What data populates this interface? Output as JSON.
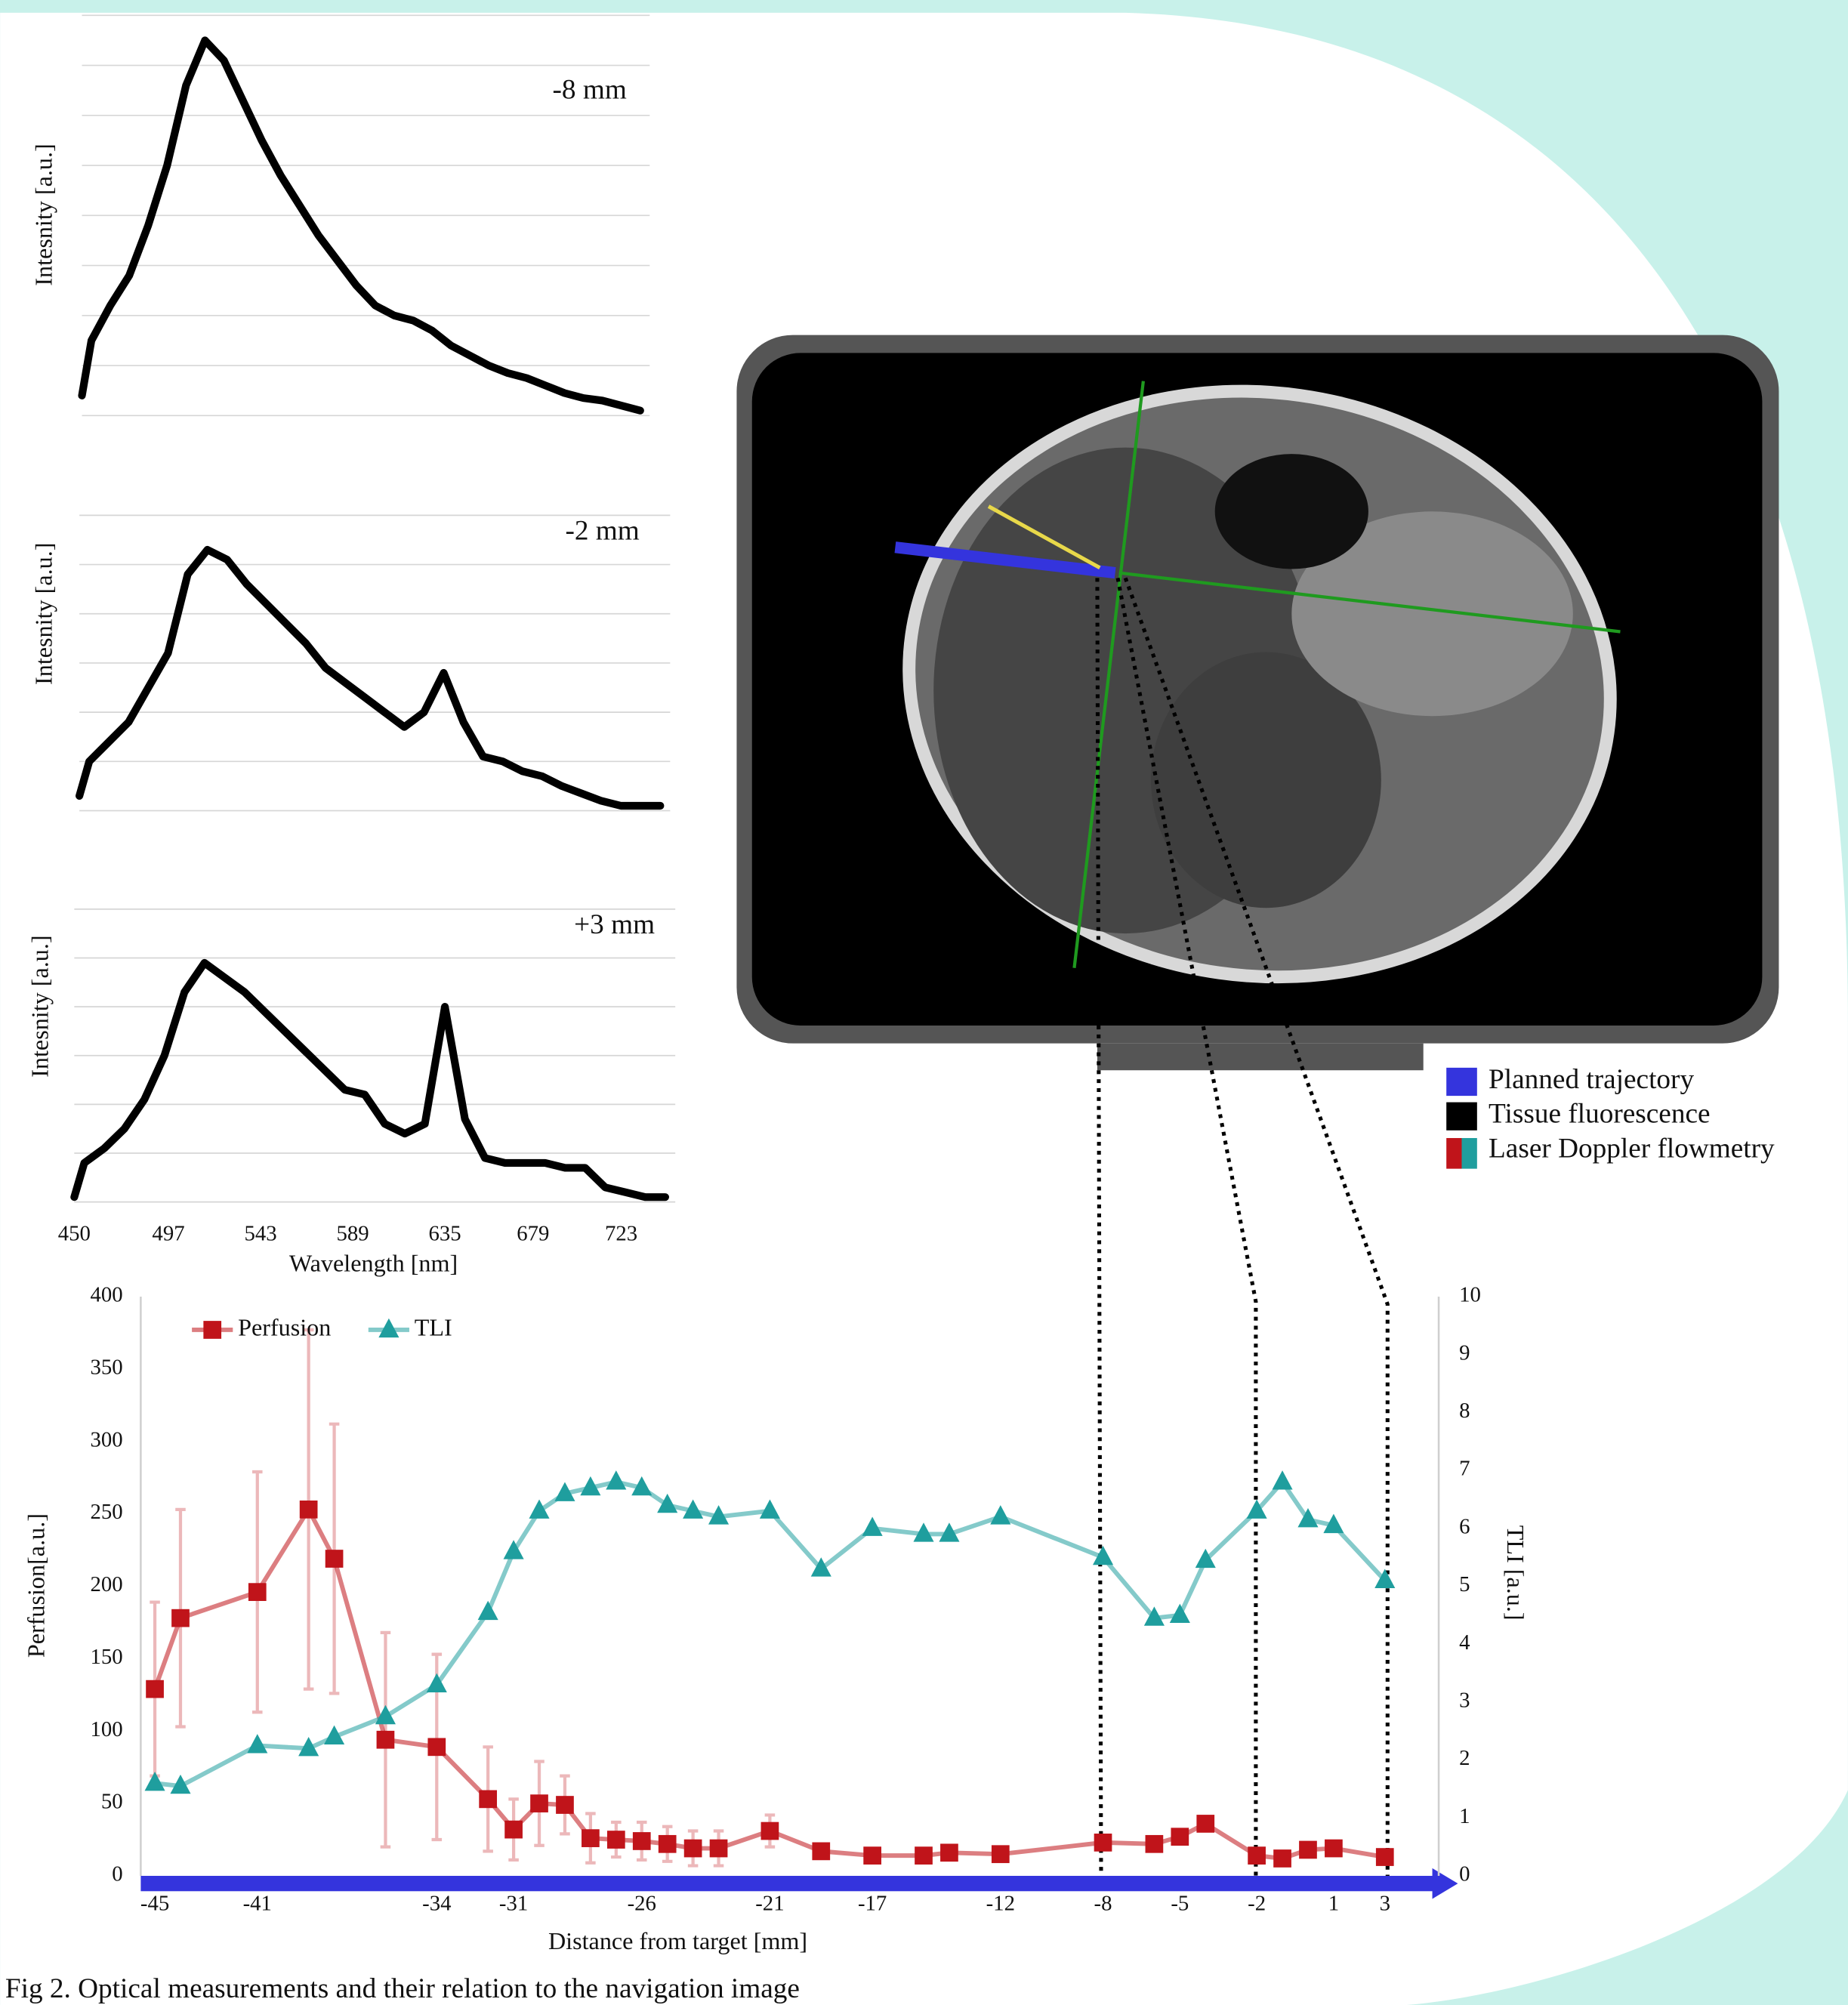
{
  "chart_data": [
    {
      "type": "line",
      "annotation": "-8 mm",
      "ylabel": "Intesnity [a.u.]",
      "color": "#000000",
      "grid": true,
      "ytick_labels": false,
      "xlim": [
        450,
        750
      ],
      "ylim": [
        0,
        8
      ],
      "yticks": [
        0,
        1,
        2,
        3,
        4,
        5,
        6,
        7,
        8
      ],
      "x": [
        450,
        455,
        465,
        475,
        485,
        495,
        505,
        515,
        525,
        535,
        545,
        555,
        565,
        575,
        585,
        595,
        605,
        615,
        625,
        635,
        645,
        655,
        665,
        675,
        685,
        695,
        705,
        715,
        725,
        735,
        745
      ],
      "values": [
        0.4,
        1.5,
        2.2,
        2.8,
        3.8,
        5.0,
        6.6,
        7.5,
        7.1,
        6.3,
        5.5,
        4.8,
        4.2,
        3.6,
        3.1,
        2.6,
        2.2,
        2.0,
        1.9,
        1.7,
        1.4,
        1.2,
        1.0,
        0.85,
        0.75,
        0.6,
        0.45,
        0.35,
        0.3,
        0.2,
        0.1
      ]
    },
    {
      "type": "line",
      "annotation": "-2 mm",
      "ylabel": "Intesnity [a.u.]",
      "color": "#000000",
      "grid": true,
      "ytick_labels": false,
      "xlim": [
        450,
        750
      ],
      "ylim": [
        0,
        6
      ],
      "yticks": [
        0,
        1,
        2,
        3,
        4,
        5,
        6
      ],
      "x": [
        450,
        455,
        465,
        475,
        485,
        495,
        505,
        515,
        525,
        535,
        545,
        555,
        565,
        575,
        585,
        595,
        605,
        615,
        625,
        635,
        645,
        655,
        665,
        675,
        685,
        695,
        705,
        715,
        725,
        735,
        745
      ],
      "values": [
        0.3,
        1.0,
        1.4,
        1.8,
        2.5,
        3.2,
        4.8,
        5.3,
        5.1,
        4.6,
        4.2,
        3.8,
        3.4,
        2.9,
        2.6,
        2.3,
        2.0,
        1.7,
        2.0,
        2.8,
        1.8,
        1.1,
        1.0,
        0.8,
        0.7,
        0.5,
        0.35,
        0.2,
        0.1,
        0.1,
        0.1
      ]
    },
    {
      "type": "line",
      "annotation": "+3 mm",
      "ylabel": "Intesnity [a.u.]",
      "xlabel": "Wavelength [nm]",
      "color": "#000000",
      "grid": true,
      "ytick_labels": false,
      "xlim": [
        450,
        750
      ],
      "ylim": [
        0,
        6
      ],
      "yticks": [
        0,
        1,
        2,
        3,
        4,
        5,
        6
      ],
      "xticks": [
        450,
        497,
        543,
        589,
        635,
        679,
        723
      ],
      "x": [
        450,
        455,
        465,
        475,
        485,
        495,
        505,
        515,
        525,
        535,
        545,
        555,
        565,
        575,
        585,
        595,
        605,
        615,
        625,
        635,
        645,
        655,
        665,
        675,
        685,
        695,
        705,
        715,
        725,
        735,
        745
      ],
      "values": [
        0.1,
        0.8,
        1.1,
        1.5,
        2.1,
        3.0,
        4.3,
        4.9,
        4.6,
        4.3,
        3.9,
        3.5,
        3.1,
        2.7,
        2.3,
        2.2,
        1.6,
        1.4,
        1.6,
        4.0,
        1.7,
        0.9,
        0.8,
        0.8,
        0.8,
        0.7,
        0.7,
        0.3,
        0.2,
        0.1,
        0.1
      ]
    },
    {
      "type": "line",
      "xlabel": "Distance from target [mm]",
      "ylabel": "Perfusion[a.u.]",
      "y2label": "TLI [a.u.]",
      "grid": false,
      "legend": "top-left",
      "xlim": [
        -45.55,
        5.1
      ],
      "ylim": [
        0,
        400
      ],
      "yticks": [
        0,
        50,
        100,
        150,
        200,
        250,
        300,
        350,
        400
      ],
      "y2lim": [
        0,
        10
      ],
      "y2ticks": [
        0,
        1,
        2,
        3,
        4,
        5,
        6,
        7,
        8,
        9,
        10
      ],
      "xticks": [
        -45,
        -41,
        -34,
        -31,
        -26,
        -21,
        -17,
        -12,
        -8,
        -5,
        -2,
        1,
        3
      ],
      "x": [
        -45,
        -44,
        -41,
        -39,
        -38,
        -36,
        -34,
        -32,
        -31,
        -30,
        -29,
        -28,
        -27,
        -26,
        -25,
        -24,
        -23,
        -21,
        -19,
        -17,
        -15,
        -14,
        -12,
        -8,
        -6,
        -5,
        -4,
        -2,
        -1,
        0,
        1,
        3
      ],
      "series": [
        {
          "name": "Perfusion",
          "color": "#c0141a",
          "marker": "square",
          "values": [
            129,
            178,
            196,
            253,
            219,
            94,
            89,
            53,
            32,
            50,
            49,
            26,
            25,
            24,
            22,
            19,
            19,
            31,
            17,
            14,
            14,
            16,
            15,
            23,
            22,
            27,
            36,
            14,
            12,
            18,
            19,
            13
          ],
          "errors": [
            60,
            75,
            83,
            124,
            93,
            74,
            64,
            36,
            21,
            29,
            20,
            17,
            12,
            13,
            12,
            12,
            12,
            11,
            4,
            3,
            3,
            3,
            3,
            4,
            3,
            3,
            4,
            3,
            3,
            3,
            3,
            3
          ]
        },
        {
          "name": "TLI",
          "color": "#1f9e9e",
          "marker": "triangle",
          "axis": "y2",
          "values": [
            1.6,
            1.55,
            2.25,
            2.2,
            2.4,
            2.75,
            3.3,
            4.55,
            5.6,
            6.3,
            6.6,
            6.7,
            6.8,
            6.7,
            6.4,
            6.3,
            6.2,
            6.3,
            5.3,
            6.0,
            5.9,
            5.9,
            6.2,
            5.5,
            4.45,
            4.5,
            5.45,
            6.3,
            6.8,
            6.15,
            6.05,
            5.1
          ]
        }
      ]
    }
  ],
  "legend": {
    "items": [
      "Planned trajectory",
      "Tissue fluorescence",
      "Laser Doppler flowmetry"
    ]
  },
  "caption": "Fig 2. Optical measurements and their relation to the navigation image"
}
